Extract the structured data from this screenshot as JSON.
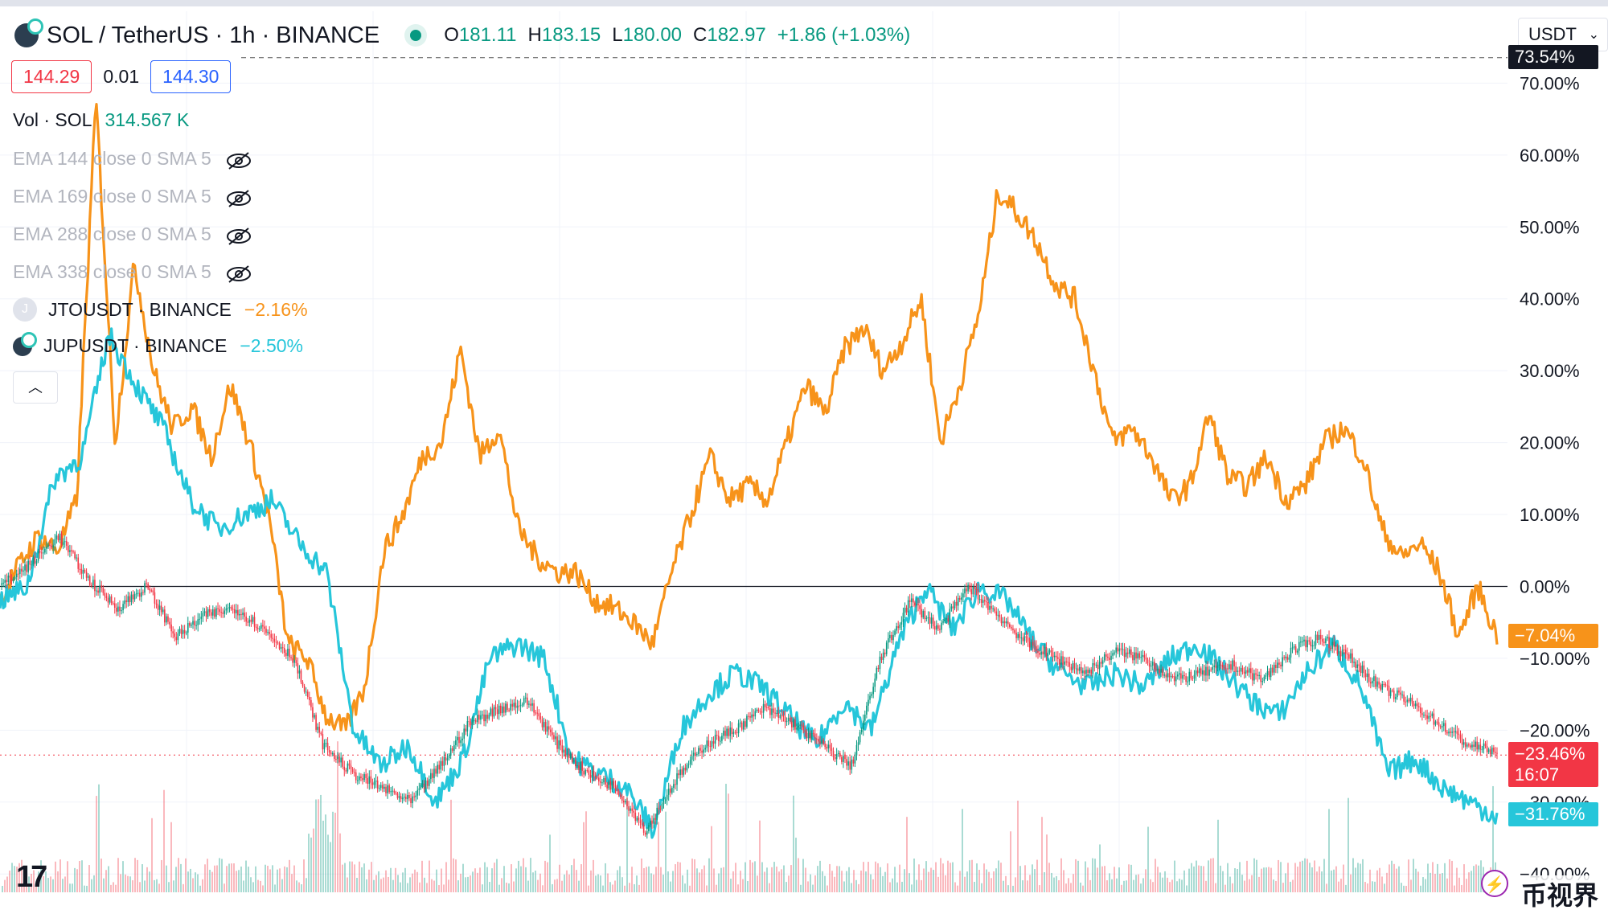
{
  "header": {
    "symbol": "SOL / TetherUS · 1h · BINANCE",
    "open_label": "O",
    "open": "181.11",
    "high_label": "H",
    "high": "183.15",
    "low_label": "L",
    "low": "180.00",
    "close_label": "C",
    "close": "182.97",
    "change": "+1.86 (+1.03%)"
  },
  "prices": {
    "sell": "144.29",
    "spread": "0.01",
    "buy": "144.30"
  },
  "volume": {
    "label": "Vol · SOL",
    "value": "314.567 K"
  },
  "indicators": [
    {
      "label": "EMA 144 close 0 SMA 5",
      "icon": "eye-off-icon"
    },
    {
      "label": "EMA 169 close 0 SMA 5",
      "icon": "eye-off-icon"
    },
    {
      "label": "EMA 288 close 0 SMA 5",
      "icon": "eye-off-icon"
    },
    {
      "label": "EMA 338 close 0 SMA 5",
      "icon": "eye-off-icon"
    }
  ],
  "compare": [
    {
      "badge": "J",
      "label": "JTOUSDT · BINANCE",
      "change": "−2.16%",
      "color": "#f7931a"
    },
    {
      "label": "JUPUSDT · BINANCE",
      "change": "−2.50%",
      "color": "#26c6da"
    }
  ],
  "currency": "USDT",
  "countdown": "16:07",
  "watermark": "币视界",
  "colors": {
    "sol_up": "#089981",
    "sol_down": "#f23645",
    "jto": "#f7931a",
    "jup": "#26c6da",
    "max_tag": "#131722"
  },
  "chart_data": {
    "type": "line",
    "percent_scale": true,
    "ylim": [
      -44,
      80
    ],
    "y_ticks": [
      "70.00%",
      "60.00%",
      "50.00%",
      "40.00%",
      "30.00%",
      "20.00%",
      "10.00%",
      "0.00%",
      "−10.00%",
      "−20.00%",
      "−30.00%",
      "−40.00%"
    ],
    "y_tick_values": [
      70,
      60,
      50,
      40,
      30,
      20,
      10,
      0,
      -10,
      -20,
      -30,
      -40
    ],
    "max_line": {
      "value": 73.54,
      "label": "73.54%"
    },
    "series": [
      {
        "name": "JTOUSDT · BINANCE",
        "color": "#f7931a",
        "last_label": "−7.04%",
        "values": [
          -2,
          3,
          7,
          5,
          12,
          68,
          20,
          45,
          30,
          22,
          25,
          18,
          28,
          20,
          10,
          -8,
          -10,
          -18,
          -20,
          -14,
          5,
          10,
          18,
          20,
          33,
          18,
          22,
          8,
          4,
          2,
          2,
          -2,
          -3,
          -5,
          -8,
          2,
          10,
          18,
          12,
          14,
          12,
          20,
          28,
          24,
          33,
          36,
          30,
          34,
          40,
          20,
          28,
          38,
          55,
          52,
          48,
          42,
          40,
          30,
          20,
          22,
          18,
          12,
          14,
          24,
          15,
          14,
          18,
          12,
          14,
          20,
          22,
          18,
          8,
          4,
          6,
          2,
          -7,
          0,
          -7
        ]
      },
      {
        "name": "JUPUSDT · BINANCE",
        "color": "#26c6da",
        "last_label": "−31.76%",
        "values": [
          -2,
          0,
          15,
          18,
          35,
          28,
          22,
          12,
          8,
          10,
          12,
          6,
          2,
          -20,
          -25,
          -22,
          -30,
          -24,
          -10,
          -8,
          -10,
          -24,
          -26,
          -28,
          -34,
          -20,
          -15,
          -12,
          -14,
          -18,
          -22,
          -16,
          -20,
          -8,
          0,
          -6,
          0,
          -2,
          -8,
          -12,
          -14,
          -12,
          -14,
          -10,
          -8,
          -12,
          -16,
          -18,
          -12,
          -8,
          -14,
          -26,
          -24,
          -28,
          -30,
          -32
        ]
      },
      {
        "name": "SOL",
        "color": "#089981",
        "last_label": "−23.46%",
        "values": [
          0,
          3,
          7,
          1,
          -3,
          0,
          -7,
          -4,
          -3,
          -6,
          -10,
          -22,
          -26,
          -28,
          -30,
          -25,
          -19,
          -17,
          -16,
          -22,
          -26,
          -28,
          -34,
          -27,
          -22,
          -20,
          -17,
          -19,
          -22,
          -25,
          -10,
          -2,
          -6,
          0,
          -4,
          -8,
          -10,
          -12,
          -9,
          -10,
          -13,
          -12,
          -11,
          -13,
          -9,
          -7,
          -10,
          -14,
          -16,
          -19,
          -22,
          -23
        ]
      }
    ],
    "last_labels": [
      "−7.04%",
      "−23.46%",
      "−31.76%"
    ]
  }
}
